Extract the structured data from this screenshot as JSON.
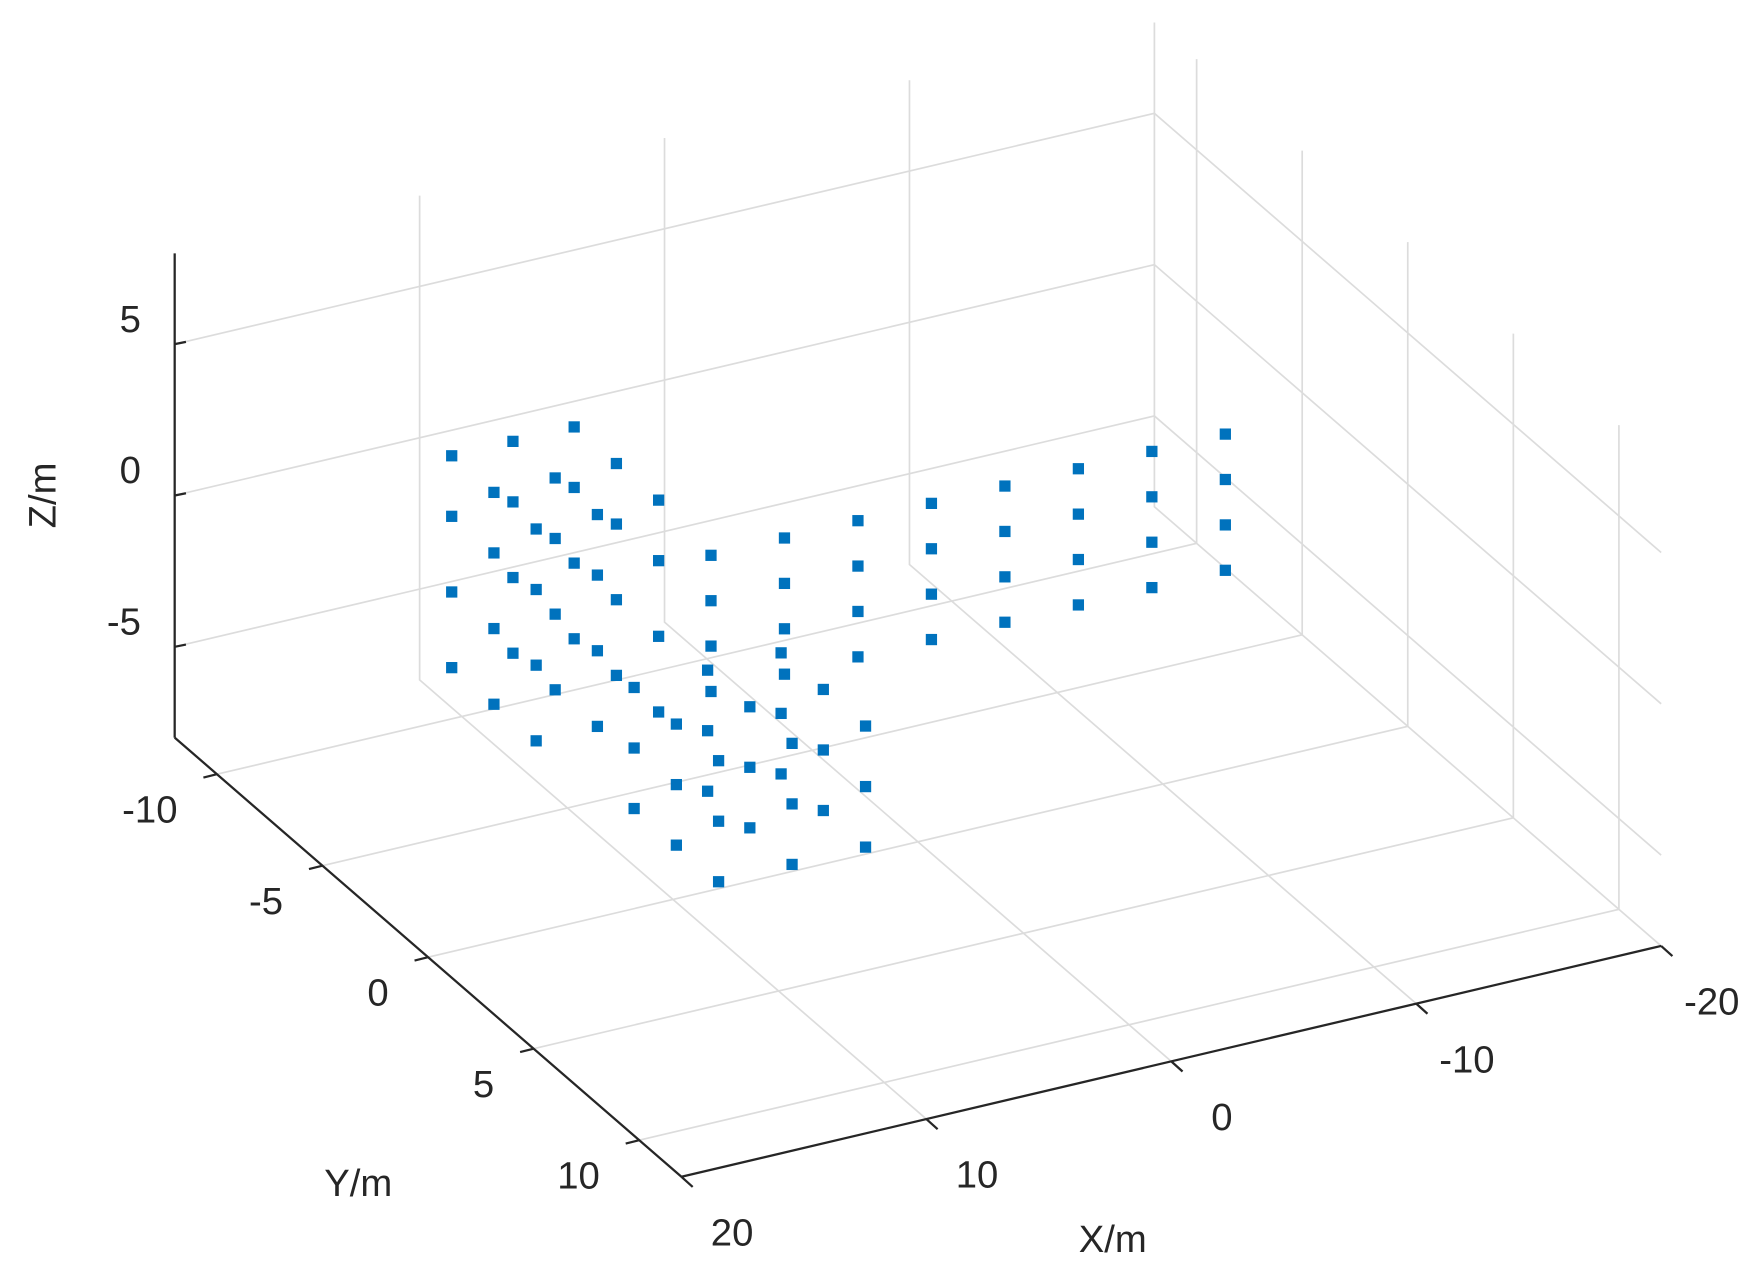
{
  "chart_data": {
    "type": "scatter3d",
    "x_label": "X/m",
    "y_label": "Y/m",
    "z_label": "Z/m",
    "color": "#0072bd",
    "grid": true,
    "xlim": [
      -20,
      20
    ],
    "ylim": [
      -12,
      12
    ],
    "zlim": [
      -8,
      8
    ],
    "xticks": [
      -20,
      -10,
      0,
      10,
      20
    ],
    "yticks": [
      -10,
      -5,
      0,
      5,
      10
    ],
    "zticks": [
      -5,
      0,
      5
    ],
    "x": [
      5,
      5,
      5,
      5,
      2,
      2,
      2,
      2,
      -1,
      -1,
      -1,
      -1,
      -4,
      -4,
      -4,
      -4,
      -7,
      -7,
      -7,
      -7,
      -10,
      -10,
      -10,
      -10,
      -13,
      -13,
      -13,
      -13,
      -16,
      -16,
      -16,
      -16,
      8,
      8,
      8,
      8,
      8,
      8,
      8,
      8,
      8,
      8,
      8,
      8,
      10.5,
      10.5,
      10.5,
      10.5,
      10.5,
      10.5,
      10.5,
      10.5,
      10.5,
      10.5,
      10.5,
      10.5,
      13,
      13,
      13,
      13,
      13,
      13,
      13,
      13,
      13,
      13,
      13,
      13,
      3,
      3,
      3,
      3,
      3,
      3,
      3,
      3,
      3,
      6,
      6,
      6,
      6,
      6,
      6,
      6,
      6,
      6,
      9,
      9,
      9,
      9,
      9,
      9,
      9,
      9,
      9
    ],
    "y": [
      -4,
      -4,
      -4,
      -4,
      -4,
      -4,
      -4,
      -4,
      -4,
      -4,
      -4,
      -4,
      -4,
      -4,
      -4,
      -4,
      -4,
      -4,
      -4,
      -4,
      -4,
      -4,
      -4,
      -4,
      -4,
      -4,
      -4,
      -4,
      -4,
      -4,
      -4,
      -4,
      -7,
      -7,
      -7,
      -7,
      -5,
      -5,
      -5,
      -5,
      -3,
      -3,
      -3,
      -3,
      -7,
      -7,
      -7,
      -7,
      -5,
      -5,
      -5,
      -5,
      -3,
      -3,
      -3,
      -3,
      -7,
      -7,
      -7,
      -7,
      -5,
      -5,
      -5,
      -5,
      -3,
      -3,
      -3,
      -3,
      -3,
      -3,
      -3,
      -1,
      -1,
      -1,
      1,
      1,
      1,
      -3,
      -3,
      -3,
      -1,
      -1,
      -1,
      1,
      1,
      1,
      -3,
      -3,
      -3,
      -1,
      -1,
      -1,
      1,
      1,
      1
    ],
    "z": [
      -4.5,
      -3,
      -1.5,
      0,
      -4.5,
      -3,
      -1.5,
      0,
      -4.5,
      -3,
      -1.5,
      0,
      -4.5,
      -3,
      -1.5,
      0,
      -4.5,
      -3,
      -1.5,
      0,
      -4.5,
      -3,
      -1.5,
      0,
      -4.5,
      -3,
      -1.5,
      0,
      -4.5,
      -3,
      -1.5,
      0,
      -4,
      -1.5,
      1,
      3,
      -4,
      -1.5,
      1,
      3,
      -4,
      -1.5,
      1,
      3,
      -4,
      -1.5,
      1,
      3,
      -4,
      -1.5,
      1,
      3,
      -4,
      -1.5,
      1,
      3,
      -4,
      -1.5,
      1,
      3,
      -4,
      -1.5,
      1,
      3,
      -4,
      -1.5,
      1,
      3,
      -7,
      -5,
      -3,
      -7,
      -5,
      -3,
      -7,
      -5,
      -3,
      -7,
      -5,
      -3,
      -7,
      -5,
      -3,
      -7,
      -5,
      -3,
      -7,
      -5,
      -3,
      -7,
      -5,
      -3,
      -7,
      -5,
      -3
    ]
  }
}
